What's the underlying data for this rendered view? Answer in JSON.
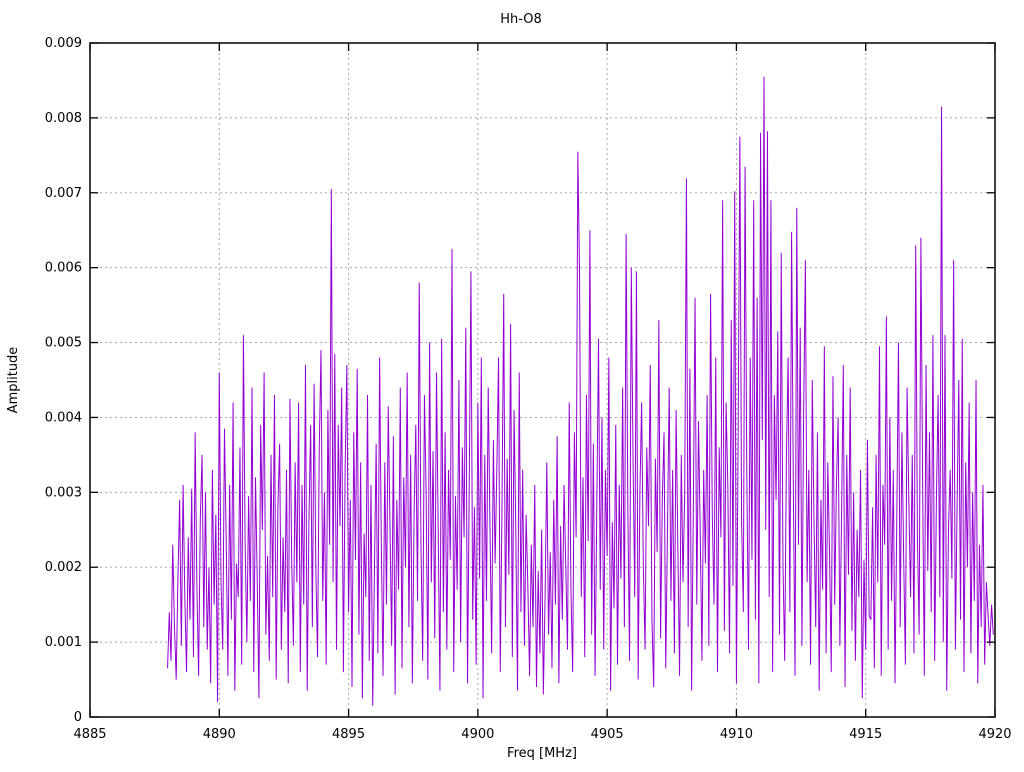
{
  "figure": {
    "title": "Hh-O8",
    "xlabel": "Freq [MHz]",
    "ylabel": "Amplitude"
  },
  "chart_data": {
    "type": "line",
    "title": "Hh-O8",
    "xlabel": "Freq [MHz]",
    "ylabel": "Amplitude",
    "xlim": [
      4885,
      4920
    ],
    "ylim": [
      0,
      0.009
    ],
    "xticks": [
      4885,
      4890,
      4895,
      4900,
      4905,
      4910,
      4915,
      4920
    ],
    "xtick_labels": [
      "4885",
      "4890",
      "4895",
      "4900",
      "4905",
      "4910",
      "4915",
      "4920"
    ],
    "yticks": [
      0,
      0.001,
      0.002,
      0.003,
      0.004,
      0.005,
      0.006,
      0.007,
      0.008,
      0.009
    ],
    "ytick_labels": [
      "0",
      "0.001",
      "0.002",
      "0.003",
      "0.004",
      "0.005",
      "0.006",
      "0.007",
      "0.008",
      "0.009"
    ],
    "grid": true,
    "legend_position": "none",
    "line_color": "#9400d3",
    "grid_color": "#a8a8a8",
    "series": [
      {
        "name": "Hh-O8",
        "x_start": 4888.0,
        "x_step": 0.066667,
        "value_scale": 1e-05,
        "values": [
          65,
          140,
          75,
          230,
          120,
          50,
          185,
          290,
          95,
          310,
          160,
          60,
          240,
          130,
          305,
          80,
          380,
          175,
          55,
          265,
          350,
          120,
          300,
          90,
          200,
          45,
          330,
          150,
          270,
          20,
          460,
          180,
          90,
          385,
          240,
          55,
          310,
          130,
          420,
          35,
          205,
          160,
          360,
          70,
          510,
          230,
          100,
          295,
          155,
          440,
          60,
          320,
          185,
          25,
          390,
          250,
          460,
          110,
          215,
          75,
          350,
          160,
          430,
          50,
          280,
          365,
          90,
          240,
          140,
          330,
          45,
          425,
          210,
          95,
          340,
          180,
          420,
          60,
          310,
          150,
          470,
          35,
          260,
          390,
          120,
          445,
          200,
          80,
          360,
          490,
          155,
          300,
          70,
          410,
          230,
          705,
          180,
          485,
          90,
          390,
          255,
          440,
          60,
          330,
          470,
          140,
          290,
          40,
          380,
          210,
          465,
          110,
          340,
          25,
          245,
          160,
          430,
          75,
          310,
          15,
          195,
          365,
          85,
          480,
          230,
          55,
          340,
          150,
          415,
          260,
          95,
          375,
          30,
          290,
          170,
          440,
          65,
          320,
          200,
          460,
          120,
          350,
          45,
          270,
          390,
          155,
          580,
          230,
          75,
          430,
          300,
          50,
          500,
          180,
          355,
          105,
          460,
          250,
          35,
          505,
          140,
          380,
          90,
          330,
          210,
          625,
          60,
          295,
          170,
          450,
          100,
          360,
          240,
          520,
          45,
          310,
          595,
          130,
          280,
          70,
          420,
          185,
          480,
          25,
          350,
          155,
          440,
          260,
          85,
          370,
          205,
          330,
          480,
          60,
          280,
          565,
          120,
          345,
          190,
          525,
          80,
          410,
          250,
          35,
          460,
          140,
          330,
          95,
          270,
          175,
          55,
          230,
          120,
          310,
          40,
          195,
          85,
          250,
          30,
          160,
          340,
          110,
          220,
          65,
          290,
          150,
          375,
          45,
          255,
          130,
          310,
          200,
          90,
          420,
          170,
          60,
          380,
          240,
          755,
          590,
          160,
          320,
          80,
          430,
          235,
          650,
          110,
          365,
          55,
          280,
          505,
          170,
          400,
          90,
          330,
          215,
          480,
          35,
          260,
          145,
          390,
          70,
          310,
          185,
          440,
          120,
          645,
          280,
          75,
          600,
          350,
          160,
          595,
          50,
          300,
          420,
          200,
          90,
          360,
          255,
          470,
          130,
          40,
          345,
          220,
          530,
          105,
          290,
          380,
          65,
          250,
          440,
          155,
          330,
          85,
          410,
          230,
          55,
          350,
          180,
          300,
          719,
          120,
          465,
          35,
          280,
          560,
          150,
          395,
          245,
          75,
          330,
          205,
          430,
          95,
          565,
          270,
          150,
          480,
          60,
          360,
          240,
          690,
          115,
          420,
          310,
          85,
          530,
          175,
          702,
          45,
          380,
          775,
          260,
          140,
          735,
          330,
          90,
          480,
          210,
          690,
          130,
          560,
          45,
          780,
          370,
          855,
          250,
          782,
          160,
          690,
          60,
          430,
          290,
          515,
          110,
          620,
          205,
          75,
          350,
          480,
          140,
          648,
          310,
          55,
          680,
          230,
          520,
          95,
          410,
          610,
          180,
          330,
          70,
          450,
          260,
          120,
          380,
          35,
          290,
          170,
          495,
          85,
          340,
          220,
          60,
          455,
          150,
          310,
          400,
          95,
          270,
          470,
          40,
          350,
          190,
          440,
          115,
          300,
          75,
          250,
          160,
          330,
          25,
          210,
          90,
          370,
          135,
          130,
          280,
          65,
          350,
          180,
          495,
          55,
          310,
          230,
          535,
          90,
          400,
          155,
          330,
          45,
          260,
          500,
          120,
          380,
          215,
          70,
          440,
          290,
          160,
          350,
          85,
          630,
          240,
          110,
          640,
          320,
          55,
          470,
          195,
          380,
          140,
          510,
          75,
          290,
          430,
          160,
          815,
          100,
          510,
          35,
          250,
          330,
          185,
          610,
          90,
          280,
          450,
          130,
          505,
          60,
          340,
          200,
          420,
          85,
          300,
          155,
          450,
          45,
          230,
          120,
          310,
          70,
          180,
          135,
          95,
          150,
          110
        ]
      }
    ]
  }
}
